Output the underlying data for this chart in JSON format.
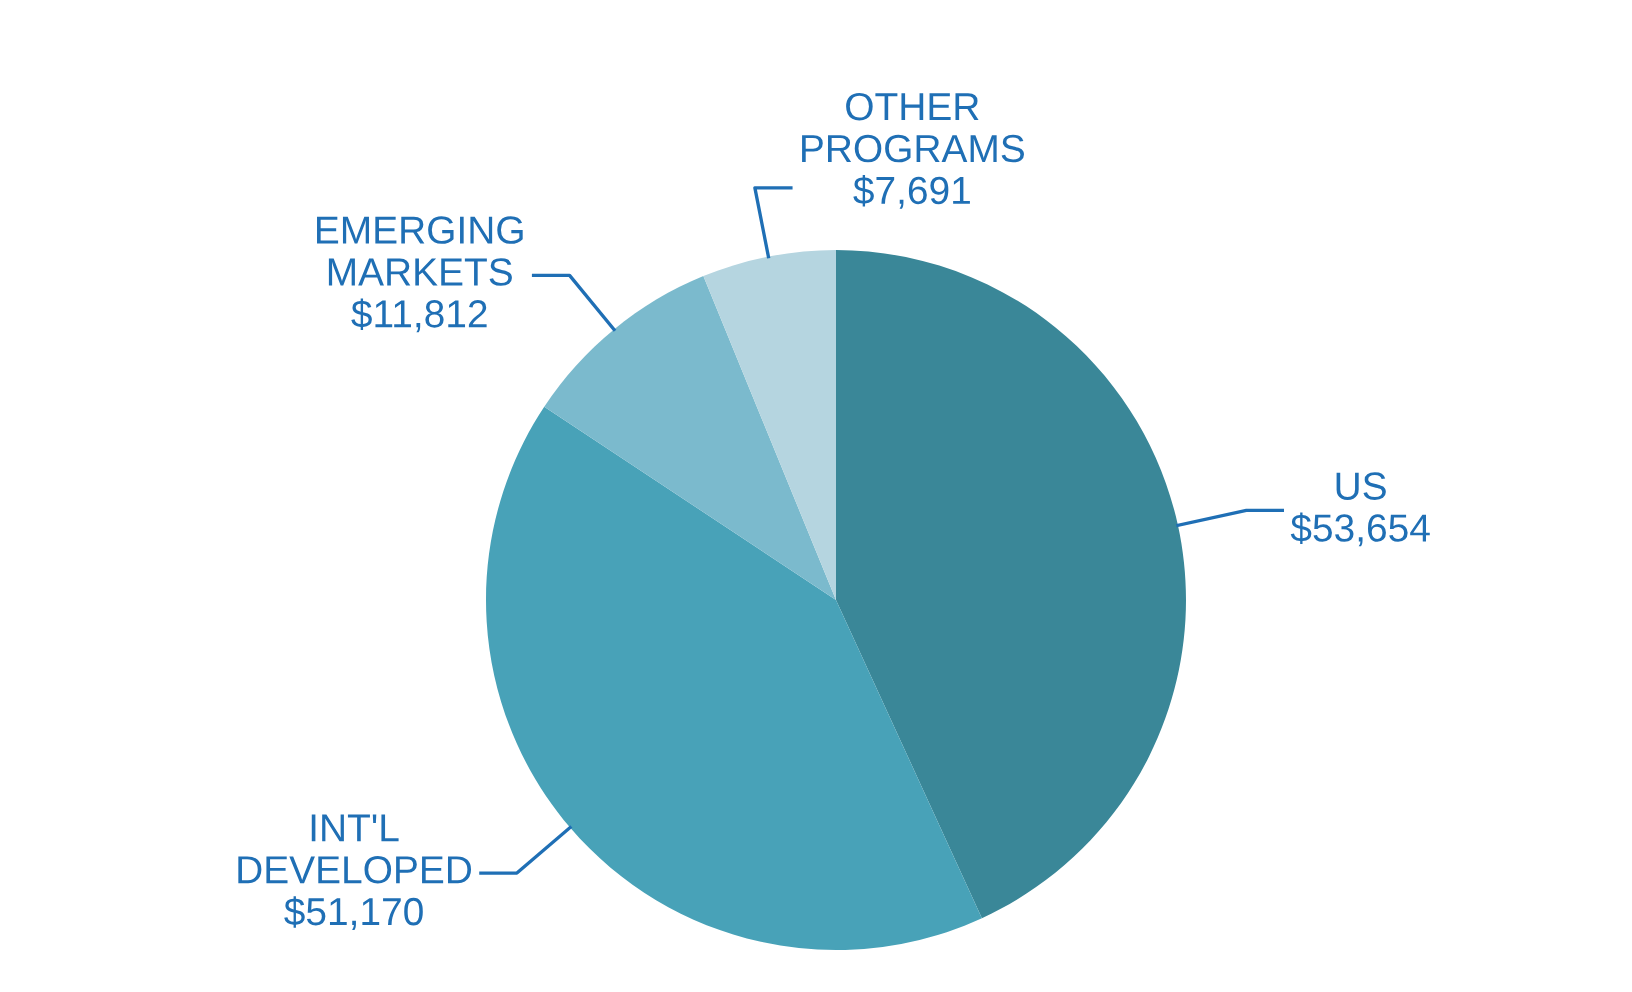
{
  "chart_data": {
    "type": "pie",
    "categories": [
      "US",
      "INT'L\nDEVELOPED",
      "EMERGING\nMARKETS",
      "OTHER\nPROGRAMS"
    ],
    "values": [
      53654,
      51170,
      11812,
      7691
    ],
    "value_labels": [
      "$53,654",
      "$51,170",
      "$11,812",
      "$7,691"
    ],
    "colors": [
      "#3a8798",
      "#48a2b8",
      "#7bbacd",
      "#b5d5e0"
    ]
  }
}
